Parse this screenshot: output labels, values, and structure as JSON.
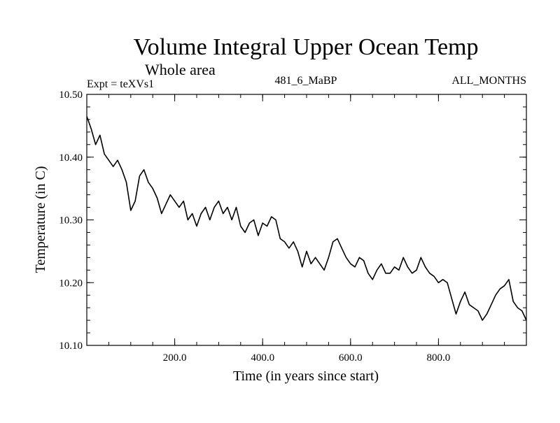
{
  "chart_data": {
    "type": "line",
    "title": "Volume Integral Upper Ocean Temp",
    "subtitle": "Whole area",
    "header_left": "Expt = teXVs1",
    "header_center": "481_6_MaBP",
    "header_right": "ALL_MONTHS",
    "xlabel": "Time (in years since start)",
    "ylabel": "Temperature (in C)",
    "xlim": [
      0,
      1000
    ],
    "ylim": [
      10.1,
      10.5
    ],
    "x_ticks": [
      200,
      400,
      600,
      800
    ],
    "x_tick_labels": [
      "200.0",
      "400.0",
      "600.0",
      "800.0"
    ],
    "y_ticks": [
      10.1,
      10.2,
      10.3,
      10.4,
      10.5
    ],
    "y_tick_labels": [
      "10.10",
      "10.20",
      "10.30",
      "10.40",
      "10.50"
    ],
    "x_minor_step": 50,
    "y_minor_step": 0.02,
    "line_color": "#000000",
    "series": [
      {
        "name": "teXVs1",
        "x": [
          0,
          10,
          20,
          30,
          40,
          50,
          60,
          70,
          80,
          90,
          100,
          110,
          120,
          130,
          140,
          150,
          160,
          170,
          180,
          190,
          200,
          210,
          220,
          230,
          240,
          250,
          260,
          270,
          280,
          290,
          300,
          310,
          320,
          330,
          340,
          350,
          360,
          370,
          380,
          390,
          400,
          410,
          420,
          430,
          440,
          450,
          460,
          470,
          480,
          490,
          500,
          510,
          520,
          530,
          540,
          550,
          560,
          570,
          580,
          590,
          600,
          610,
          620,
          630,
          640,
          650,
          660,
          670,
          680,
          690,
          700,
          710,
          720,
          730,
          740,
          750,
          760,
          770,
          780,
          790,
          800,
          810,
          820,
          830,
          840,
          850,
          860,
          870,
          880,
          890,
          900,
          910,
          920,
          930,
          940,
          950,
          960,
          970,
          980,
          990,
          1000
        ],
        "values": [
          10.465,
          10.445,
          10.42,
          10.435,
          10.405,
          10.395,
          10.385,
          10.395,
          10.38,
          10.36,
          10.315,
          10.33,
          10.37,
          10.38,
          10.36,
          10.35,
          10.335,
          10.31,
          10.325,
          10.34,
          10.33,
          10.32,
          10.33,
          10.3,
          10.31,
          10.29,
          10.31,
          10.32,
          10.3,
          10.32,
          10.33,
          10.31,
          10.32,
          10.3,
          10.32,
          10.29,
          10.28,
          10.295,
          10.3,
          10.275,
          10.295,
          10.29,
          10.305,
          10.3,
          10.27,
          10.265,
          10.255,
          10.265,
          10.25,
          10.225,
          10.25,
          10.23,
          10.24,
          10.23,
          10.22,
          10.24,
          10.265,
          10.27,
          10.255,
          10.24,
          10.23,
          10.225,
          10.24,
          10.235,
          10.215,
          10.205,
          10.22,
          10.23,
          10.215,
          10.215,
          10.225,
          10.22,
          10.24,
          10.225,
          10.215,
          10.22,
          10.24,
          10.225,
          10.215,
          10.21,
          10.2,
          10.205,
          10.2,
          10.175,
          10.15,
          10.17,
          10.185,
          10.165,
          10.16,
          10.155,
          10.14,
          10.15,
          10.165,
          10.18,
          10.19,
          10.195,
          10.205,
          10.17,
          10.16,
          10.155,
          10.14
        ]
      }
    ]
  }
}
